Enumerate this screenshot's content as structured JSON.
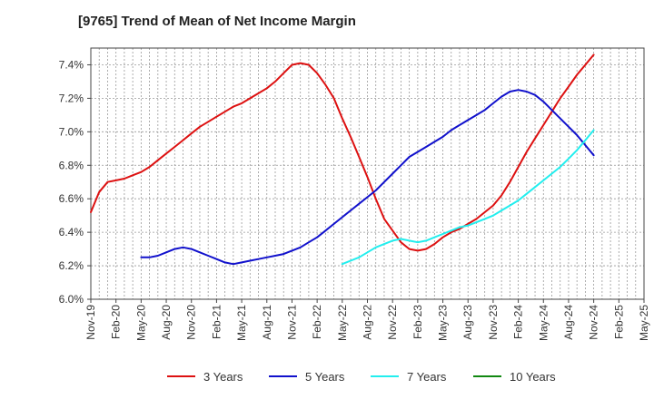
{
  "chart_data": {
    "type": "line",
    "title": "[9765]  Trend of Mean of Net Income Margin",
    "xlabel": "",
    "ylabel": "",
    "ylim": [
      6.0,
      7.5
    ],
    "yticks": [
      6.0,
      6.2,
      6.4,
      6.6,
      6.8,
      7.0,
      7.2,
      7.4
    ],
    "ytick_labels": [
      "6.0%",
      "6.2%",
      "6.4%",
      "6.6%",
      "6.8%",
      "7.0%",
      "7.2%",
      "7.4%"
    ],
    "xticks": [
      "Nov-19",
      "Feb-20",
      "May-20",
      "Aug-20",
      "Nov-20",
      "Feb-21",
      "May-21",
      "Aug-21",
      "Nov-21",
      "Feb-22",
      "May-22",
      "Aug-22",
      "Nov-22",
      "Feb-23",
      "May-23",
      "Aug-23",
      "Nov-23",
      "Feb-24",
      "May-24",
      "Aug-24",
      "Nov-24",
      "Feb-25",
      "May-25"
    ],
    "grid": true,
    "legend_position": "bottom",
    "series": [
      {
        "name": "3 Years",
        "color": "#dd1111",
        "x": [
          "2019-11",
          "2019-12",
          "2020-01",
          "2020-02",
          "2020-03",
          "2020-04",
          "2020-05",
          "2020-06",
          "2020-07",
          "2020-08",
          "2020-09",
          "2020-10",
          "2020-11",
          "2020-12",
          "2021-01",
          "2021-02",
          "2021-03",
          "2021-04",
          "2021-05",
          "2021-06",
          "2021-07",
          "2021-08",
          "2021-09",
          "2021-10",
          "2021-11",
          "2021-12",
          "2022-01",
          "2022-02",
          "2022-03",
          "2022-04",
          "2022-05",
          "2022-06",
          "2022-07",
          "2022-08",
          "2022-09",
          "2022-10",
          "2022-11",
          "2022-12",
          "2023-01",
          "2023-02",
          "2023-03",
          "2023-04",
          "2023-05",
          "2023-06",
          "2023-07",
          "2023-08",
          "2023-09",
          "2023-10",
          "2023-11",
          "2023-12",
          "2024-01",
          "2024-02",
          "2024-03",
          "2024-04",
          "2024-05",
          "2024-06",
          "2024-07",
          "2024-08",
          "2024-09",
          "2024-10",
          "2024-11"
        ],
        "values": [
          6.52,
          6.64,
          6.7,
          6.71,
          6.72,
          6.74,
          6.76,
          6.79,
          6.83,
          6.87,
          6.91,
          6.95,
          6.99,
          7.03,
          7.06,
          7.09,
          7.12,
          7.15,
          7.17,
          7.2,
          7.23,
          7.26,
          7.3,
          7.35,
          7.4,
          7.41,
          7.4,
          7.35,
          7.28,
          7.2,
          7.08,
          6.97,
          6.85,
          6.73,
          6.6,
          6.48,
          6.41,
          6.34,
          6.3,
          6.29,
          6.3,
          6.33,
          6.37,
          6.4,
          6.42,
          6.45,
          6.48,
          6.52,
          6.56,
          6.62,
          6.7,
          6.79,
          6.88,
          6.96,
          7.04,
          7.12,
          7.2,
          7.27,
          7.34,
          7.4,
          7.46
        ]
      },
      {
        "name": "5 Years",
        "color": "#1111cc",
        "x": [
          "2020-05",
          "2020-06",
          "2020-07",
          "2020-08",
          "2020-09",
          "2020-10",
          "2020-11",
          "2020-12",
          "2021-01",
          "2021-02",
          "2021-03",
          "2021-04",
          "2021-05",
          "2021-06",
          "2021-07",
          "2021-08",
          "2021-09",
          "2021-10",
          "2021-11",
          "2021-12",
          "2022-01",
          "2022-02",
          "2022-03",
          "2022-04",
          "2022-05",
          "2022-06",
          "2022-07",
          "2022-08",
          "2022-09",
          "2022-10",
          "2022-11",
          "2022-12",
          "2023-01",
          "2023-02",
          "2023-03",
          "2023-04",
          "2023-05",
          "2023-06",
          "2023-07",
          "2023-08",
          "2023-09",
          "2023-10",
          "2023-11",
          "2023-12",
          "2024-01",
          "2024-02",
          "2024-03",
          "2024-04",
          "2024-05",
          "2024-06",
          "2024-07",
          "2024-08",
          "2024-09",
          "2024-10",
          "2024-11"
        ],
        "values": [
          6.25,
          6.25,
          6.26,
          6.28,
          6.3,
          6.31,
          6.3,
          6.28,
          6.26,
          6.24,
          6.22,
          6.21,
          6.22,
          6.23,
          6.24,
          6.25,
          6.26,
          6.27,
          6.29,
          6.31,
          6.34,
          6.37,
          6.41,
          6.45,
          6.49,
          6.53,
          6.57,
          6.61,
          6.65,
          6.7,
          6.75,
          6.8,
          6.85,
          6.88,
          6.91,
          6.94,
          6.97,
          7.01,
          7.04,
          7.07,
          7.1,
          7.13,
          7.17,
          7.21,
          7.24,
          7.25,
          7.24,
          7.22,
          7.18,
          7.13,
          7.08,
          7.03,
          6.98,
          6.92,
          6.86
        ]
      },
      {
        "name": "7 Years",
        "color": "#22eeee",
        "x": [
          "2022-05",
          "2022-06",
          "2022-07",
          "2022-08",
          "2022-09",
          "2022-10",
          "2022-11",
          "2022-12",
          "2023-01",
          "2023-02",
          "2023-03",
          "2023-04",
          "2023-05",
          "2023-06",
          "2023-07",
          "2023-08",
          "2023-09",
          "2023-10",
          "2023-11",
          "2023-12",
          "2024-01",
          "2024-02",
          "2024-03",
          "2024-04",
          "2024-05",
          "2024-06",
          "2024-07",
          "2024-08",
          "2024-09",
          "2024-10",
          "2024-11"
        ],
        "values": [
          6.21,
          6.23,
          6.25,
          6.28,
          6.31,
          6.33,
          6.35,
          6.36,
          6.35,
          6.34,
          6.35,
          6.37,
          6.39,
          6.41,
          6.43,
          6.44,
          6.46,
          6.48,
          6.5,
          6.53,
          6.56,
          6.59,
          6.63,
          6.67,
          6.71,
          6.75,
          6.79,
          6.84,
          6.89,
          6.95,
          7.01
        ]
      },
      {
        "name": "10 Years",
        "color": "#118811",
        "x": [],
        "values": []
      }
    ]
  }
}
